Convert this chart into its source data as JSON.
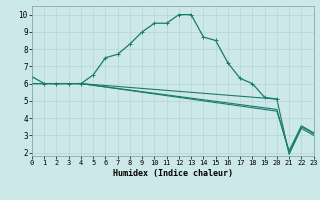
{
  "title": "",
  "xlabel": "Humidex (Indice chaleur)",
  "ylabel": "",
  "background_color": "#cce8e8",
  "grid_color": "#b8d8d8",
  "line_color": "#1a7a6e",
  "xlim": [
    0,
    23
  ],
  "ylim": [
    1.8,
    10.5
  ],
  "xticks": [
    0,
    1,
    2,
    3,
    4,
    5,
    6,
    7,
    8,
    9,
    10,
    11,
    12,
    13,
    14,
    15,
    16,
    17,
    18,
    19,
    20,
    21,
    22,
    23
  ],
  "yticks": [
    2,
    3,
    4,
    5,
    6,
    7,
    8,
    9,
    10
  ],
  "lines": [
    {
      "x": [
        0,
        1,
        2,
        3,
        4,
        5,
        6,
        7,
        8,
        9,
        10,
        11,
        12,
        13,
        14,
        15,
        16,
        17,
        18,
        19,
        20
      ],
      "y": [
        6.4,
        6.0,
        6.0,
        6.0,
        6.0,
        6.5,
        7.5,
        7.7,
        8.3,
        9.0,
        9.5,
        9.5,
        10.0,
        10.0,
        8.7,
        8.5,
        7.2,
        6.3,
        6.0,
        5.2,
        5.1
      ],
      "marker": true
    },
    {
      "x": [
        0,
        4,
        20,
        21,
        22,
        23
      ],
      "y": [
        6.0,
        6.0,
        5.1,
        1.9,
        3.4,
        3.0
      ],
      "marker": false
    },
    {
      "x": [
        0,
        4,
        20,
        21,
        22,
        23
      ],
      "y": [
        6.0,
        6.0,
        4.5,
        2.0,
        3.5,
        3.1
      ],
      "marker": false
    },
    {
      "x": [
        0,
        4,
        20,
        21,
        22,
        23
      ],
      "y": [
        6.0,
        6.0,
        4.4,
        2.1,
        3.55,
        3.15
      ],
      "marker": false
    }
  ]
}
